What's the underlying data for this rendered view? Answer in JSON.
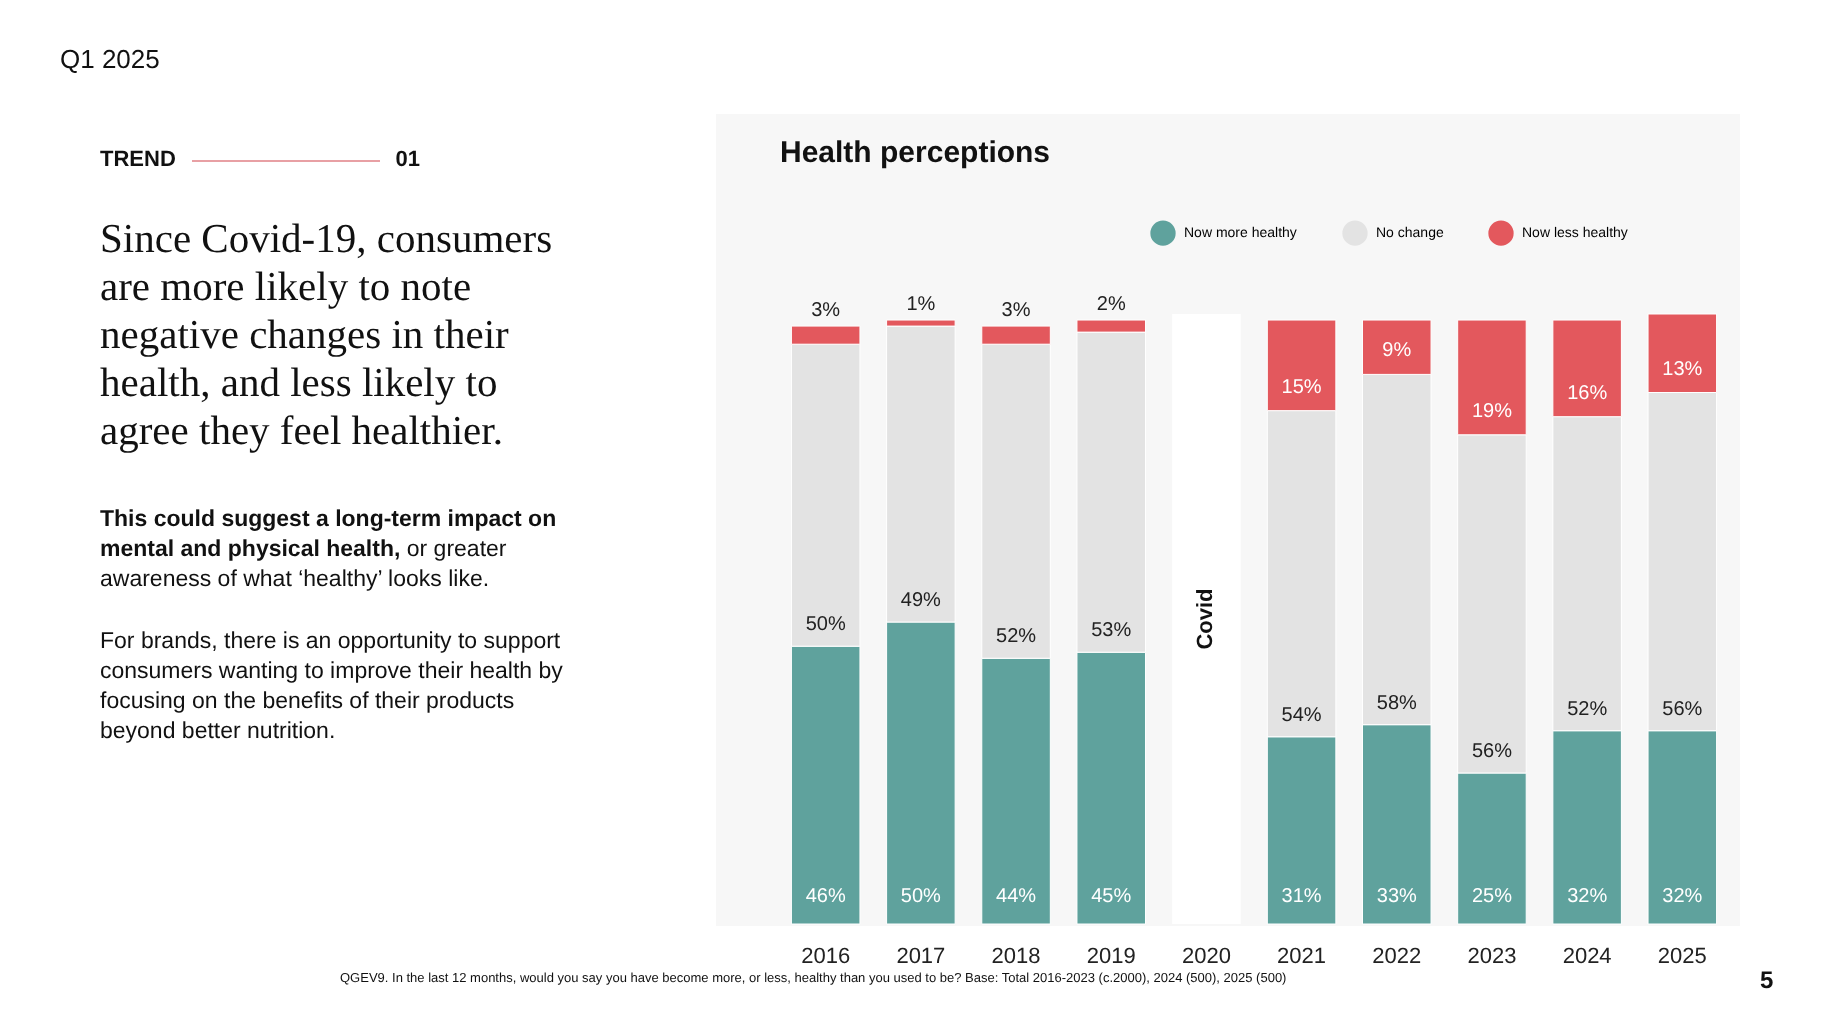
{
  "chart_data": {
    "type": "bar",
    "title": "Health perceptions",
    "stacked": true,
    "legend": "top right",
    "categories": [
      "2016",
      "2017",
      "2018",
      "2019",
      "2020",
      "2021",
      "2022",
      "2023",
      "2024",
      "2025"
    ],
    "series": [
      {
        "name": "Now more healthy",
        "color": "#5fa29d",
        "values": [
          46,
          50,
          44,
          45,
          null,
          31,
          33,
          25,
          32,
          32
        ],
        "value_labels": [
          "46%",
          "50%",
          "44%",
          "45%",
          null,
          "31%",
          "33%",
          "25%",
          "32%",
          "32%"
        ]
      },
      {
        "name": "No change",
        "color": "#e3e3e3",
        "values": [
          50,
          49,
          52,
          53,
          null,
          54,
          58,
          56,
          52,
          56
        ],
        "value_labels": [
          "50%",
          "49%",
          "52%",
          "53%",
          null,
          "54%",
          "58%",
          "56%",
          "52%",
          "56%"
        ]
      },
      {
        "name": "Now less healthy",
        "color": "#e3585d",
        "values": [
          3,
          1,
          3,
          2,
          null,
          15,
          9,
          19,
          16,
          13
        ],
        "value_labels": [
          "3%",
          "1%",
          "3%",
          "2%",
          null,
          "15%",
          "9%",
          "19%",
          "16%",
          "13%"
        ]
      }
    ],
    "bands": [
      {
        "axis": "x",
        "from": "2020",
        "to": "2020",
        "label": "Covid",
        "color": "#ffffff"
      }
    ],
    "annotations": [
      "Q1 2025",
      "TREND",
      "01",
      "Since Covid-19, consumers are more likely to note negative changes in their health, and less likely to agree they feel healthier.",
      "This could suggest a long-term impact on mental and physical health,",
      "or greater awareness of what ‘healthy’ looks like.",
      "For brands, there is an opportunity to support consumers wanting to improve their health by focusing on the benefits of their products beyond better nutrition.",
      "QGEV9. In the last 12 months, would you say you have become more, or less, healthy than you used to be? Base: Total 2016-2023 (c.2000), 2024 (500), 2025 (500)",
      "5"
    ]
  }
}
